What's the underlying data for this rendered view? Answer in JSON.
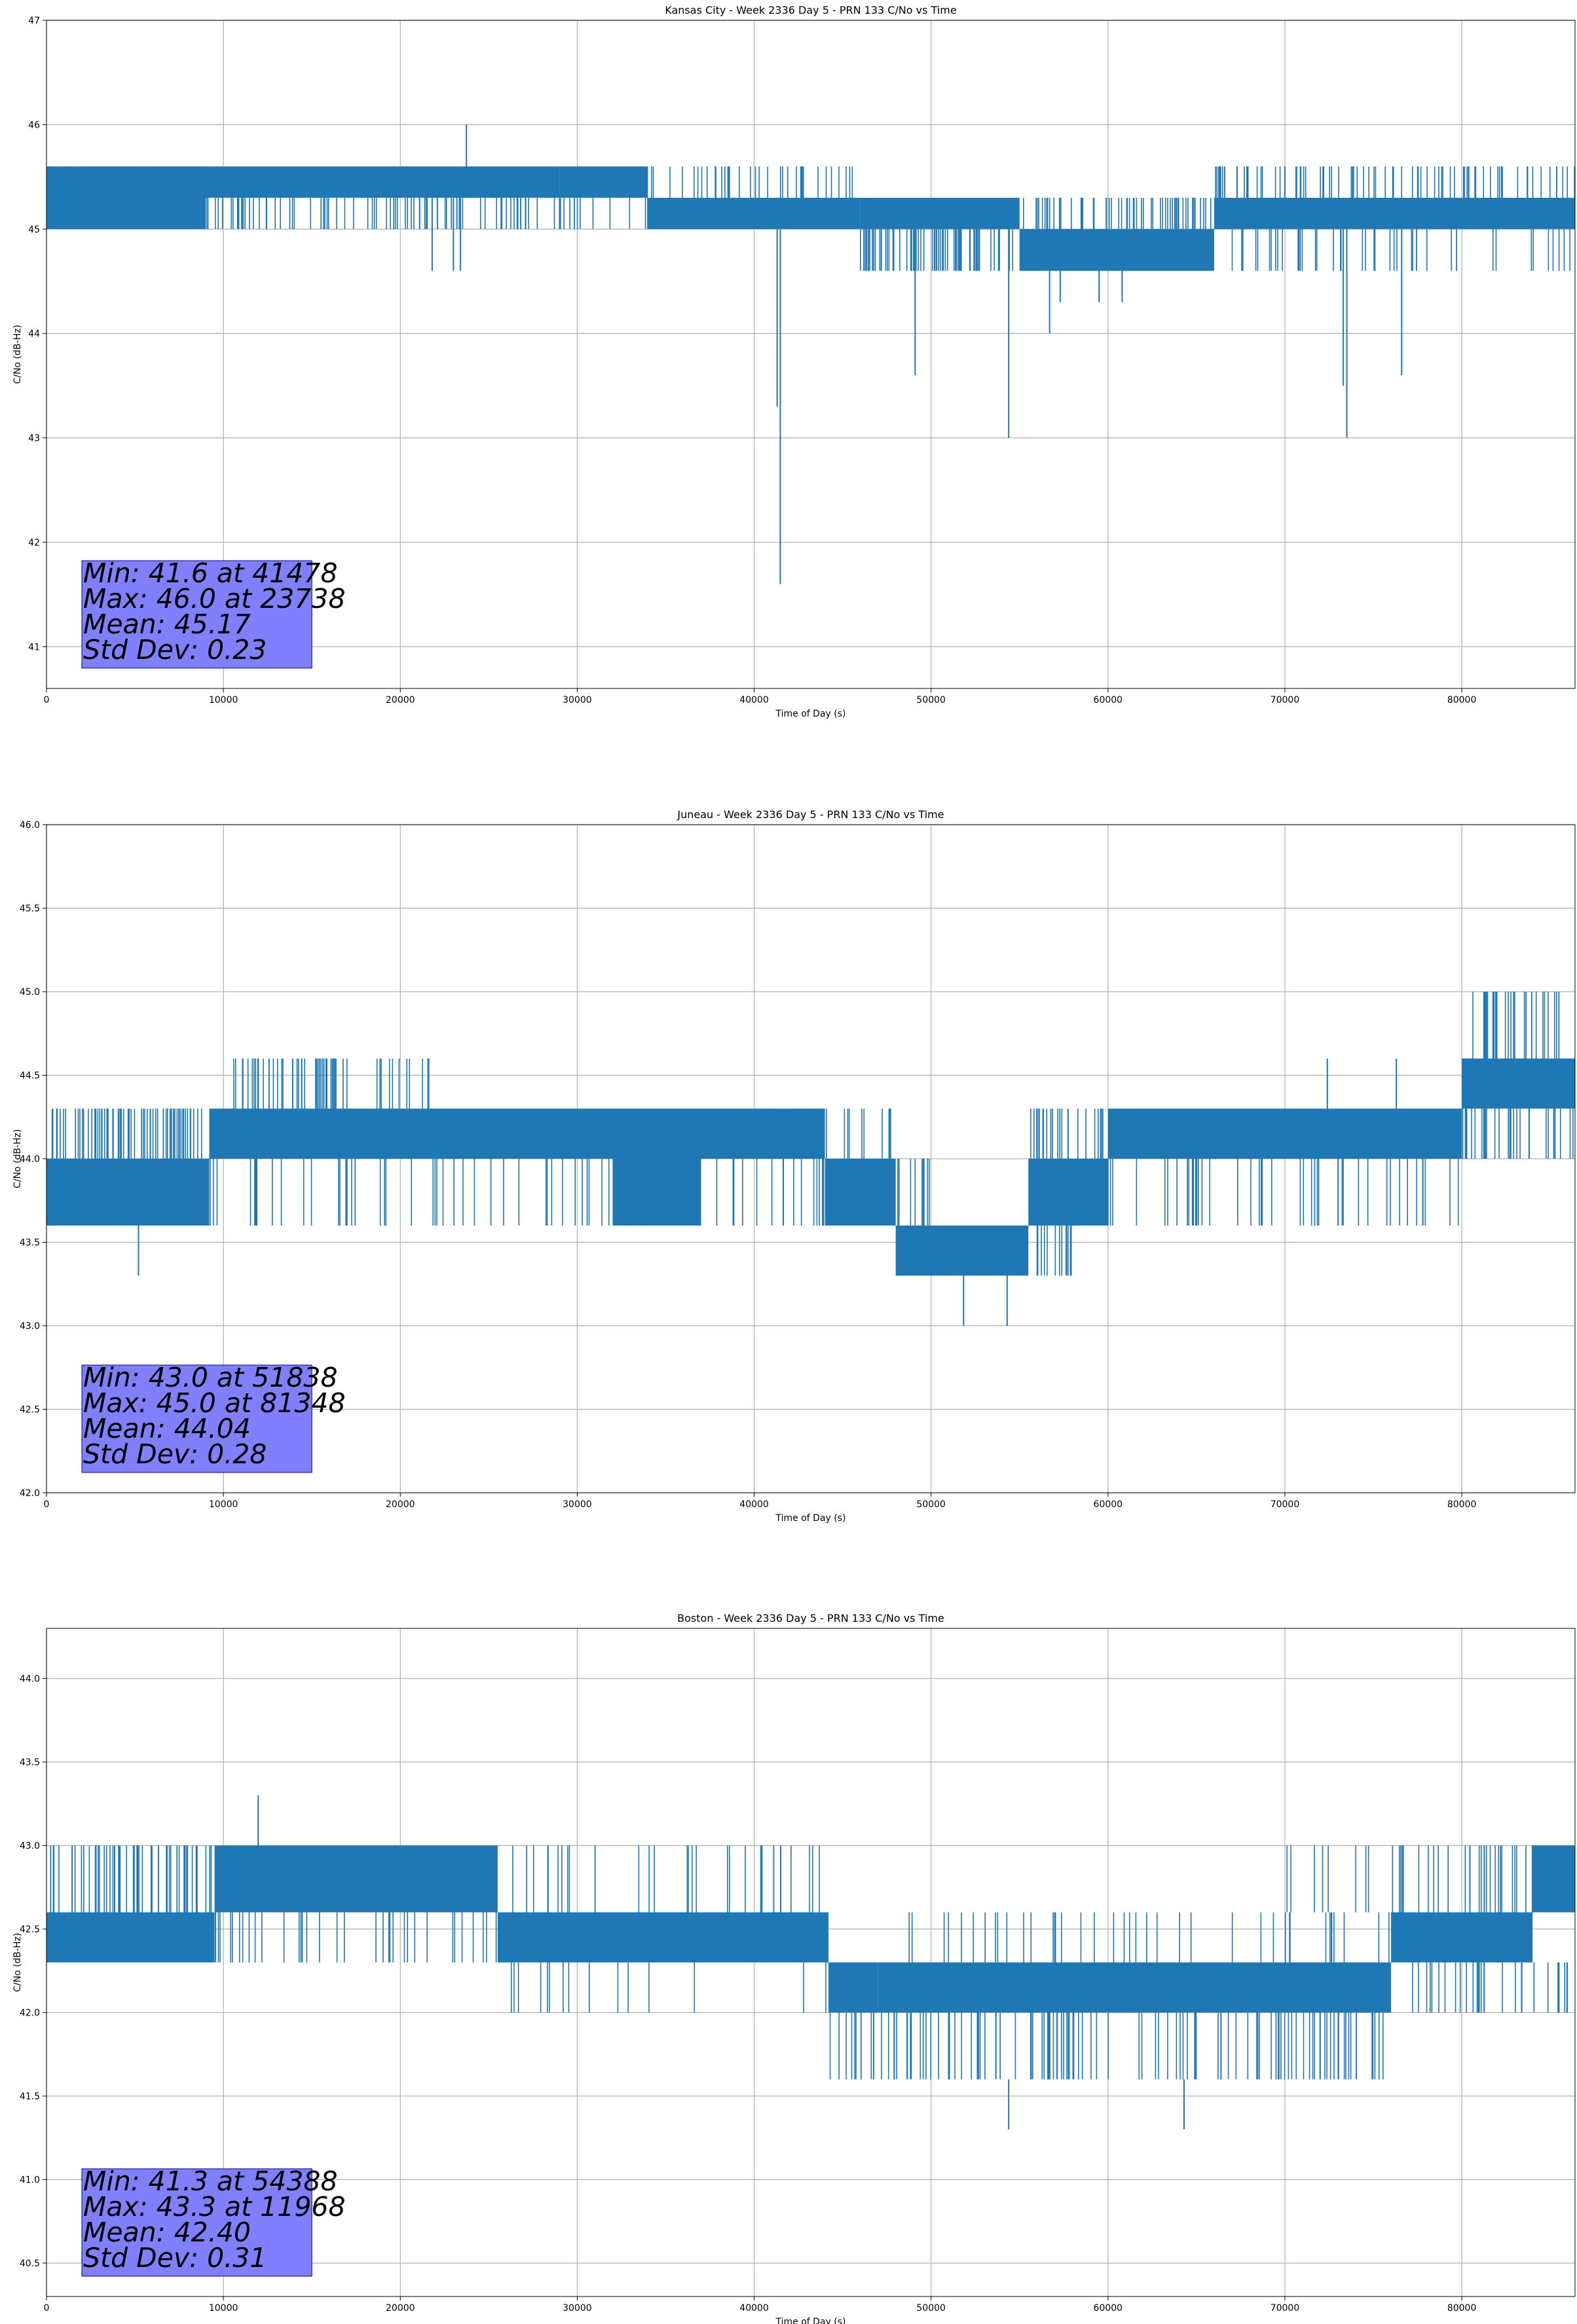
{
  "colors": {
    "series": "#1f77b4",
    "grid": "#b0b0b0",
    "stats_box_fill": "#8080ff",
    "stats_box_edge": "#000080"
  },
  "chart_data": [
    {
      "type": "line",
      "title": "Kansas City - Week 2336 Day 5 - PRN 133 C/No vs Time",
      "xlabel": "Time of Day (s)",
      "ylabel": "C/No (dB-Hz)",
      "grid": true,
      "xlim": [
        0,
        86400
      ],
      "ylim": [
        40.6,
        47.0
      ],
      "xticks": [
        0,
        10000,
        20000,
        30000,
        40000,
        50000,
        60000,
        70000,
        80000
      ],
      "xtick_labels": [
        "0",
        "10000",
        "20000",
        "30000",
        "40000",
        "50000",
        "60000",
        "70000",
        "80000"
      ],
      "yticks": [
        41,
        42,
        43,
        44,
        45,
        46,
        47
      ],
      "ytick_labels": [
        "41",
        "42",
        "43",
        "44",
        "45",
        "46",
        "47"
      ],
      "stats_lines": [
        "Min: 41.6 at 41478",
        "Max: 46.0 at 23738",
        "Mean: 45.17",
        "Std Dev: 0.23"
      ],
      "bands": [
        {
          "x": [
            0,
            9000
          ],
          "y": [
            45.0,
            45.6
          ]
        },
        {
          "x": [
            9000,
            29000
          ],
          "y": [
            45.3,
            45.6
          ]
        },
        {
          "x": [
            29000,
            34000
          ],
          "y": [
            45.3,
            45.6
          ]
        },
        {
          "x": [
            34000,
            46000
          ],
          "y": [
            45.0,
            45.3
          ]
        },
        {
          "x": [
            46000,
            55000
          ],
          "y": [
            45.0,
            45.3
          ]
        },
        {
          "x": [
            55000,
            66000
          ],
          "y": [
            44.6,
            45.0
          ]
        },
        {
          "x": [
            66000,
            86400
          ],
          "y": [
            45.0,
            45.3
          ]
        }
      ],
      "flicker": [
        {
          "x": [
            0,
            9000
          ],
          "y": [
            45.3,
            45.6
          ],
          "n": 60,
          "seed": 1
        },
        {
          "x": [
            9000,
            34000
          ],
          "y": [
            45.0,
            45.3
          ],
          "n": 90,
          "seed": 2
        },
        {
          "x": [
            34000,
            46000
          ],
          "y": [
            45.3,
            45.6
          ],
          "n": 35,
          "seed": 3
        },
        {
          "x": [
            46000,
            55000
          ],
          "y": [
            44.6,
            45.0
          ],
          "n": 70,
          "seed": 4
        },
        {
          "x": [
            55000,
            66000
          ],
          "y": [
            45.0,
            45.3
          ],
          "n": 60,
          "seed": 5
        },
        {
          "x": [
            66000,
            86400
          ],
          "y": [
            45.3,
            45.6
          ],
          "n": 80,
          "seed": 6
        },
        {
          "x": [
            66000,
            86400
          ],
          "y": [
            44.6,
            45.0
          ],
          "n": 45,
          "seed": 7
        }
      ],
      "spikes": [
        {
          "x": 21800,
          "y": [
            44.6,
            45.3
          ]
        },
        {
          "x": 23000,
          "y": [
            44.6,
            45.3
          ]
        },
        {
          "x": 23400,
          "y": [
            44.6,
            45.3
          ]
        },
        {
          "x": 23738,
          "y": [
            45.3,
            46.0
          ]
        },
        {
          "x": 41478,
          "y": [
            41.6,
            45.0
          ]
        },
        {
          "x": 41300,
          "y": [
            43.3,
            45.0
          ]
        },
        {
          "x": 49100,
          "y": [
            43.6,
            45.0
          ]
        },
        {
          "x": 50200,
          "y": [
            44.6,
            45.0
          ]
        },
        {
          "x": 54388,
          "y": [
            43.0,
            45.0
          ]
        },
        {
          "x": 55700,
          "y": [
            44.6,
            45.0
          ]
        },
        {
          "x": 56700,
          "y": [
            44.0,
            44.6
          ]
        },
        {
          "x": 57300,
          "y": [
            44.3,
            44.6
          ]
        },
        {
          "x": 59500,
          "y": [
            44.3,
            44.6
          ]
        },
        {
          "x": 60800,
          "y": [
            44.3,
            44.6
          ]
        },
        {
          "x": 73300,
          "y": [
            43.5,
            45.0
          ]
        },
        {
          "x": 73500,
          "y": [
            43.0,
            45.0
          ]
        },
        {
          "x": 76600,
          "y": [
            43.6,
            45.0
          ]
        },
        {
          "x": 67300,
          "y": [
            45.3,
            45.6
          ]
        },
        {
          "x": 70000,
          "y": [
            45.3,
            45.6
          ]
        }
      ]
    },
    {
      "type": "line",
      "title": "Juneau - Week 2336 Day 5 - PRN 133 C/No vs Time",
      "xlabel": "Time of Day (s)",
      "ylabel": "C/No (dB-Hz)",
      "grid": true,
      "xlim": [
        0,
        86400
      ],
      "ylim": [
        42.0,
        46.0
      ],
      "xticks": [
        0,
        10000,
        20000,
        30000,
        40000,
        50000,
        60000,
        70000,
        80000
      ],
      "xtick_labels": [
        "0",
        "10000",
        "20000",
        "30000",
        "40000",
        "50000",
        "60000",
        "70000",
        "80000"
      ],
      "yticks": [
        42.0,
        42.5,
        43.0,
        43.5,
        44.0,
        44.5,
        45.0,
        45.5,
        46.0
      ],
      "ytick_labels": [
        "42.0",
        "42.5",
        "43.0",
        "43.5",
        "44.0",
        "44.5",
        "45.0",
        "45.5",
        "46.0"
      ],
      "stats_lines": [
        "Min: 43.0 at 51838",
        "Max: 45.0 at 81348",
        "Mean: 44.04",
        "Std Dev: 0.28"
      ],
      "bands": [
        {
          "x": [
            0,
            9200
          ],
          "y": [
            43.6,
            44.0
          ]
        },
        {
          "x": [
            9200,
            38000
          ],
          "y": [
            44.0,
            44.3
          ]
        },
        {
          "x": [
            32000,
            37000
          ],
          "y": [
            43.6,
            44.0
          ]
        },
        {
          "x": [
            38000,
            44000
          ],
          "y": [
            44.0,
            44.3
          ]
        },
        {
          "x": [
            44000,
            48000
          ],
          "y": [
            43.6,
            44.0
          ]
        },
        {
          "x": [
            48000,
            55500
          ],
          "y": [
            43.3,
            43.6
          ]
        },
        {
          "x": [
            55500,
            60000
          ],
          "y": [
            43.6,
            44.0
          ]
        },
        {
          "x": [
            60000,
            80000
          ],
          "y": [
            44.0,
            44.3
          ]
        },
        {
          "x": [
            80000,
            86400
          ],
          "y": [
            44.3,
            44.6
          ]
        }
      ],
      "flicker": [
        {
          "x": [
            0,
            9200
          ],
          "y": [
            44.0,
            44.3
          ],
          "n": 70,
          "seed": 11
        },
        {
          "x": [
            10500,
            17000
          ],
          "y": [
            44.3,
            44.6
          ],
          "n": 45,
          "seed": 12
        },
        {
          "x": [
            18500,
            22000
          ],
          "y": [
            44.3,
            44.6
          ],
          "n": 12,
          "seed": 13
        },
        {
          "x": [
            9200,
            44000
          ],
          "y": [
            43.6,
            44.0
          ],
          "n": 70,
          "seed": 14
        },
        {
          "x": [
            40000,
            48000
          ],
          "y": [
            44.0,
            44.3
          ],
          "n": 30,
          "seed": 15
        },
        {
          "x": [
            47500,
            50000
          ],
          "y": [
            43.6,
            44.0
          ],
          "n": 14,
          "seed": 16
        },
        {
          "x": [
            55500,
            60000
          ],
          "y": [
            44.0,
            44.3
          ],
          "n": 25,
          "seed": 17
        },
        {
          "x": [
            55500,
            58000
          ],
          "y": [
            43.3,
            43.6
          ],
          "n": 14,
          "seed": 18
        },
        {
          "x": [
            60000,
            80000
          ],
          "y": [
            43.6,
            44.0
          ],
          "n": 45,
          "seed": 19
        },
        {
          "x": [
            80000,
            86400
          ],
          "y": [
            44.0,
            44.3
          ],
          "n": 30,
          "seed": 20
        },
        {
          "x": [
            80500,
            85500
          ],
          "y": [
            44.6,
            45.0
          ],
          "n": 30,
          "seed": 21
        }
      ],
      "spikes": [
        {
          "x": 5200,
          "y": [
            43.3,
            43.6
          ]
        },
        {
          "x": 51838,
          "y": [
            43.0,
            43.3
          ]
        },
        {
          "x": 54300,
          "y": [
            43.0,
            43.3
          ]
        },
        {
          "x": 72400,
          "y": [
            44.3,
            44.6
          ]
        },
        {
          "x": 76300,
          "y": [
            44.3,
            44.6
          ]
        },
        {
          "x": 81348,
          "y": [
            44.6,
            45.0
          ]
        },
        {
          "x": 85200,
          "y": [
            44.0,
            44.3
          ]
        }
      ]
    },
    {
      "type": "line",
      "title": "Boston - Week 2336 Day 5 - PRN 133 C/No vs Time",
      "xlabel": "Time of Day (s)",
      "ylabel": "C/No (dB-Hz)",
      "grid": true,
      "xlim": [
        0,
        86400
      ],
      "ylim": [
        40.3,
        44.3
      ],
      "xticks": [
        0,
        10000,
        20000,
        30000,
        40000,
        50000,
        60000,
        70000,
        80000
      ],
      "xtick_labels": [
        "0",
        "10000",
        "20000",
        "30000",
        "40000",
        "50000",
        "60000",
        "70000",
        "80000"
      ],
      "yticks": [
        40.5,
        41.0,
        41.5,
        42.0,
        42.5,
        43.0,
        43.5,
        44.0
      ],
      "ytick_labels": [
        "40.5",
        "41.0",
        "41.5",
        "42.0",
        "42.5",
        "43.0",
        "43.5",
        "44.0"
      ],
      "stats_lines": [
        "Min: 41.3 at 54388",
        "Max: 43.3 at 11968",
        "Mean: 42.40",
        "Std Dev: 0.31"
      ],
      "bands": [
        {
          "x": [
            0,
            9500
          ],
          "y": [
            42.3,
            42.6
          ]
        },
        {
          "x": [
            9500,
            25500
          ],
          "y": [
            42.6,
            43.0
          ]
        },
        {
          "x": [
            25500,
            44200
          ],
          "y": [
            42.3,
            42.6
          ]
        },
        {
          "x": [
            44200,
            47000
          ],
          "y": [
            42.0,
            42.3
          ]
        },
        {
          "x": [
            47000,
            76000
          ],
          "y": [
            42.0,
            42.3
          ]
        },
        {
          "x": [
            76000,
            84000
          ],
          "y": [
            42.3,
            42.6
          ]
        },
        {
          "x": [
            84000,
            86400
          ],
          "y": [
            42.6,
            43.0
          ]
        }
      ],
      "flicker": [
        {
          "x": [
            0,
            9500
          ],
          "y": [
            42.6,
            43.0
          ],
          "n": 55,
          "seed": 31
        },
        {
          "x": [
            9500,
            25500
          ],
          "y": [
            42.3,
            42.6
          ],
          "n": 35,
          "seed": 32
        },
        {
          "x": [
            25500,
            44200
          ],
          "y": [
            42.6,
            43.0
          ],
          "n": 30,
          "seed": 33
        },
        {
          "x": [
            25500,
            44200
          ],
          "y": [
            42.0,
            42.3
          ],
          "n": 15,
          "seed": 34
        },
        {
          "x": [
            44200,
            76000
          ],
          "y": [
            41.6,
            42.0
          ],
          "n": 120,
          "seed": 35
        },
        {
          "x": [
            47000,
            76000
          ],
          "y": [
            42.3,
            42.6
          ],
          "n": 40,
          "seed": 36
        },
        {
          "x": [
            70000,
            86400
          ],
          "y": [
            42.6,
            43.0
          ],
          "n": 45,
          "seed": 37
        },
        {
          "x": [
            76000,
            86400
          ],
          "y": [
            42.0,
            42.3
          ],
          "n": 30,
          "seed": 38
        }
      ],
      "spikes": [
        {
          "x": 11968,
          "y": [
            43.0,
            43.3
          ]
        },
        {
          "x": 54388,
          "y": [
            41.3,
            41.6
          ]
        },
        {
          "x": 64300,
          "y": [
            41.3,
            41.6
          ]
        },
        {
          "x": 41500,
          "y": [
            43.0,
            42.6
          ]
        }
      ]
    }
  ]
}
